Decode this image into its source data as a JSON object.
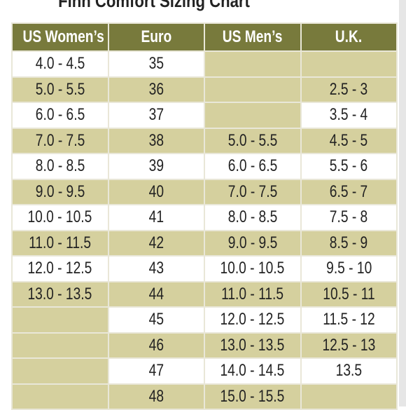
{
  "header": {
    "title": "Finn Comfort Sizing Chart"
  },
  "table": {
    "columns": [
      "US Women’s",
      "Euro",
      "US Men’s",
      "U.K."
    ],
    "rows": [
      [
        "4.0 - 4.5",
        "35",
        null,
        null
      ],
      [
        "5.0 - 5.5",
        "36",
        null,
        "2.5 - 3"
      ],
      [
        "6.0 - 6.5",
        "37",
        null,
        "3.5 - 4"
      ],
      [
        "7.0 - 7.5",
        "38",
        "5.0 - 5.5",
        "4.5 - 5"
      ],
      [
        "8.0 - 8.5",
        "39",
        "6.0 - 6.5",
        "5.5 - 6"
      ],
      [
        "9.0 - 9.5",
        "40",
        "7.0 - 7.5",
        "6.5 - 7"
      ],
      [
        "10.0 - 10.5",
        "41",
        "8.0 - 8.5",
        "7.5 - 8"
      ],
      [
        "11.0 - 11.5",
        "42",
        "9.0 - 9.5",
        "8.5 - 9"
      ],
      [
        "12.0 - 12.5",
        "43",
        "10.0 - 10.5",
        "9.5 - 10"
      ],
      [
        "13.0 - 13.5",
        "44",
        "11.0 - 11.5",
        "10.5 - 11"
      ],
      [
        null,
        "45",
        "12.0 - 12.5",
        "11.5 - 12"
      ],
      [
        null,
        "46",
        "13.0 - 13.5",
        "12.5 - 13"
      ],
      [
        null,
        "47",
        "14.0 - 14.5",
        "13.5"
      ],
      [
        null,
        "48",
        "15.0 - 15.5",
        null
      ]
    ]
  }
}
